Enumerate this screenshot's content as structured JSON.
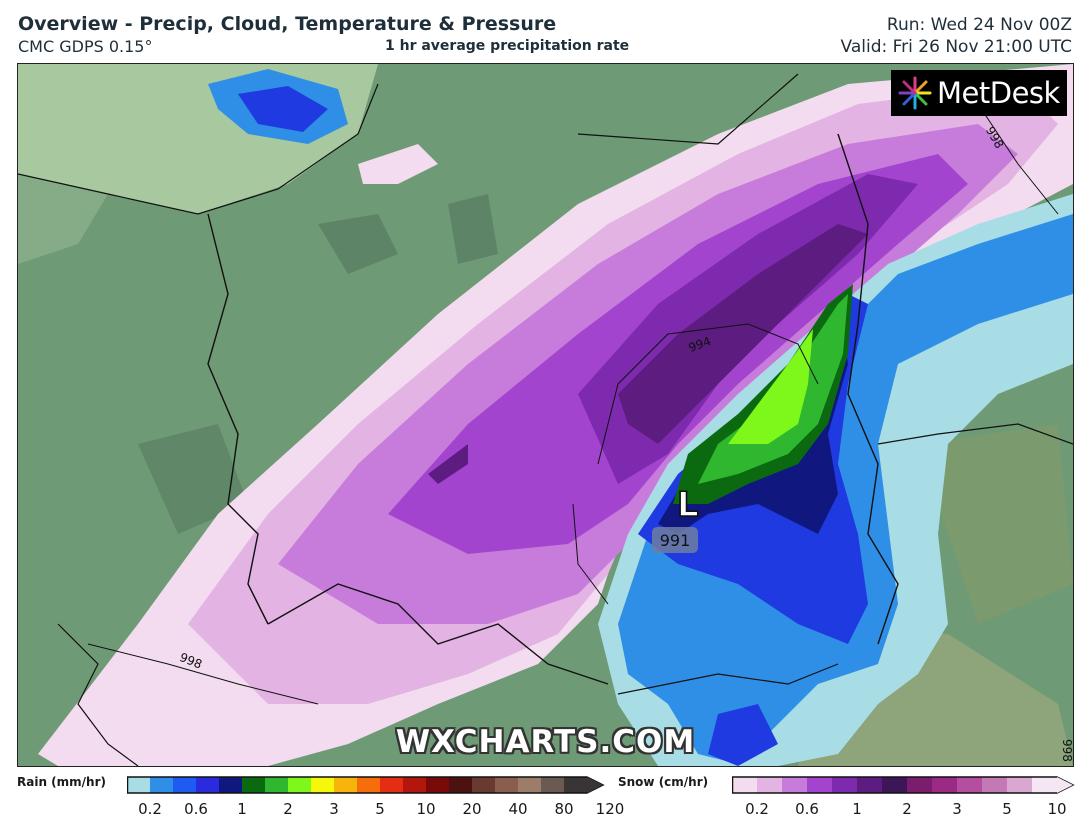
{
  "header": {
    "title": "Overview - Precip, Cloud, Temperature & Pressure",
    "model": "CMC GDPS 0.15°",
    "subtitle": "1 hr average precipitation rate",
    "run": "Run: Wed 24 Nov 00Z",
    "valid": "Valid: Fri 26 Nov 21:00 UTC"
  },
  "branding": {
    "logo_text": "MetDesk",
    "watermark": "WXCHARTS.COM"
  },
  "map": {
    "low_symbol": "L",
    "low_pressure": "991",
    "isobar_labels": [
      "994",
      "998",
      "998",
      "998"
    ]
  },
  "legend": {
    "rain": {
      "title": "Rain (mm/hr)",
      "colors": [
        "#a9dde6",
        "#2f8fe6",
        "#1f5af2",
        "#2a2adf",
        "#101880",
        "#0b6a10",
        "#2fb82f",
        "#7ef71a",
        "#f7f70c",
        "#f7b50c",
        "#f76d0c",
        "#e42d12",
        "#b2160c",
        "#7a0a0a",
        "#4c1212",
        "#6a3a30",
        "#8a5e4e",
        "#9e7c6a",
        "#6a5a52",
        "#3a3535"
      ],
      "ticks": [
        "0.2",
        "0.6",
        "1",
        "2",
        "3",
        "5",
        "10",
        "20",
        "40",
        "80",
        "120"
      ]
    },
    "snow": {
      "title": "Snow (cm/hr)",
      "colors": [
        "#f3dcef",
        "#e2b3e3",
        "#c77cdb",
        "#a344cf",
        "#7e2aaf",
        "#5c1c80",
        "#3d1658",
        "#7c1c6c",
        "#9a2a84",
        "#b44e9e",
        "#c37ab4",
        "#d9a7cf",
        "#f4e6f2"
      ],
      "ticks": [
        "0.2",
        "0.6",
        "1",
        "2",
        "3",
        "5",
        "10"
      ]
    }
  },
  "colors": {
    "land": "#6f9a76",
    "snow_light": "#f3dcef",
    "snow_mid": "#c37ad8",
    "snow_heavy": "#8f3ecb",
    "snow_extreme": "#5c1c80",
    "rain_light": "#a9dde6",
    "rain_mod": "#2f8fe6",
    "rain_heavy": "#1f3ae0",
    "rain_green": "#2fb82f"
  }
}
